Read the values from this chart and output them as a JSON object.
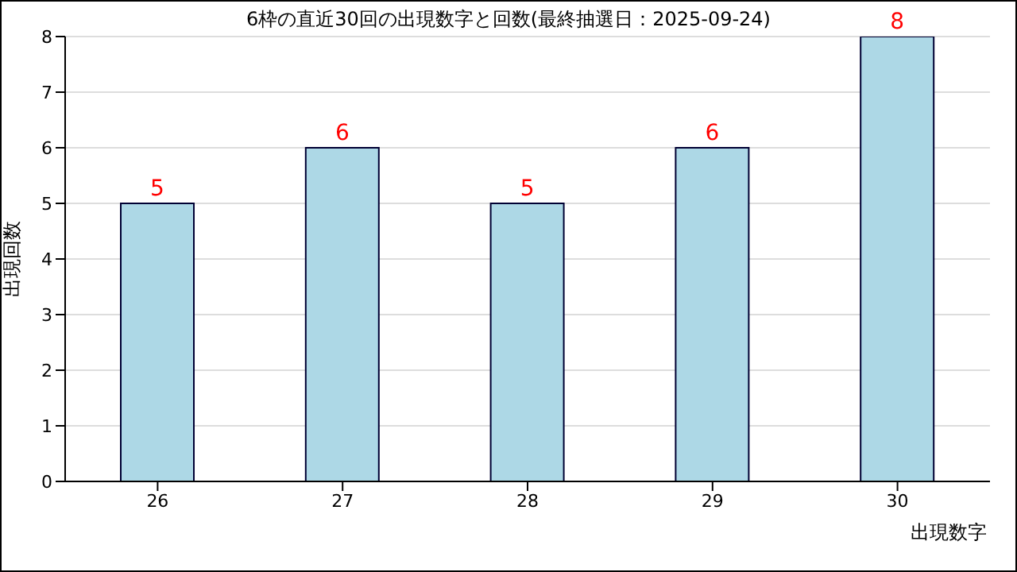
{
  "chart_data": {
    "type": "bar",
    "title": "6枠の直近30回の出現数字と回数(最終抽選日：2025-09-24)",
    "xlabel": "出現数字",
    "ylabel": "出現回数",
    "categories": [
      "26",
      "27",
      "28",
      "29",
      "30"
    ],
    "values": [
      5,
      6,
      5,
      6,
      8
    ],
    "color": "#add8e6",
    "ylim": [
      0,
      8
    ],
    "yticks": [
      0,
      1,
      2,
      3,
      4,
      5,
      6,
      7,
      8
    ],
    "grid": "y",
    "data_labels": true
  }
}
